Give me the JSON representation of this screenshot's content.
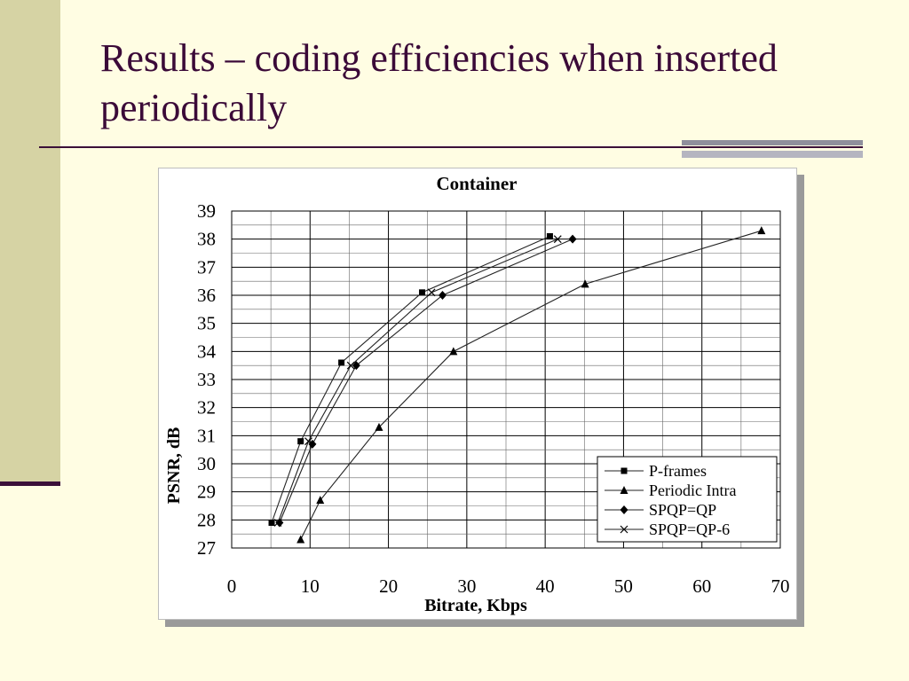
{
  "slide": {
    "title": "Results – coding efficiencies when inserted periodically",
    "colors": {
      "background": "#fffde3",
      "title": "#3b0a38",
      "sidebar": "#d6d3a4",
      "rule": "#3b1038"
    }
  },
  "chart_data": {
    "type": "line",
    "title": "Container",
    "xlabel": "Bitrate, Kbps",
    "ylabel": "PSNR, dB",
    "xlim": [
      0,
      70
    ],
    "ylim": [
      27,
      39
    ],
    "x_ticks": [
      0,
      10,
      20,
      30,
      40,
      50,
      60,
      70
    ],
    "y_ticks": [
      27,
      28,
      29,
      30,
      31,
      32,
      33,
      34,
      35,
      36,
      37,
      38,
      39
    ],
    "grid": true,
    "legend_position": "bottom-right",
    "series": [
      {
        "name": "P-frames",
        "marker": "square",
        "x": [
          5.1,
          8.8,
          14.0,
          24.3,
          40.6
        ],
        "y": [
          27.9,
          30.8,
          33.6,
          36.1,
          38.1
        ]
      },
      {
        "name": "Periodic Intra",
        "marker": "triangle",
        "x": [
          8.8,
          11.3,
          18.8,
          28.3,
          45.1,
          67.6
        ],
        "y": [
          27.3,
          28.7,
          31.3,
          34.0,
          36.4,
          38.3
        ]
      },
      {
        "name": "SPQP=QP",
        "marker": "diamond",
        "x": [
          6.1,
          10.3,
          15.9,
          26.9,
          43.5
        ],
        "y": [
          27.9,
          30.7,
          33.5,
          36.0,
          38.0
        ]
      },
      {
        "name": "SPQP=QP-6",
        "marker": "x",
        "x": [
          5.9,
          9.8,
          15.2,
          25.5,
          41.6
        ],
        "y": [
          27.9,
          30.8,
          33.5,
          36.1,
          38.0
        ]
      }
    ]
  }
}
